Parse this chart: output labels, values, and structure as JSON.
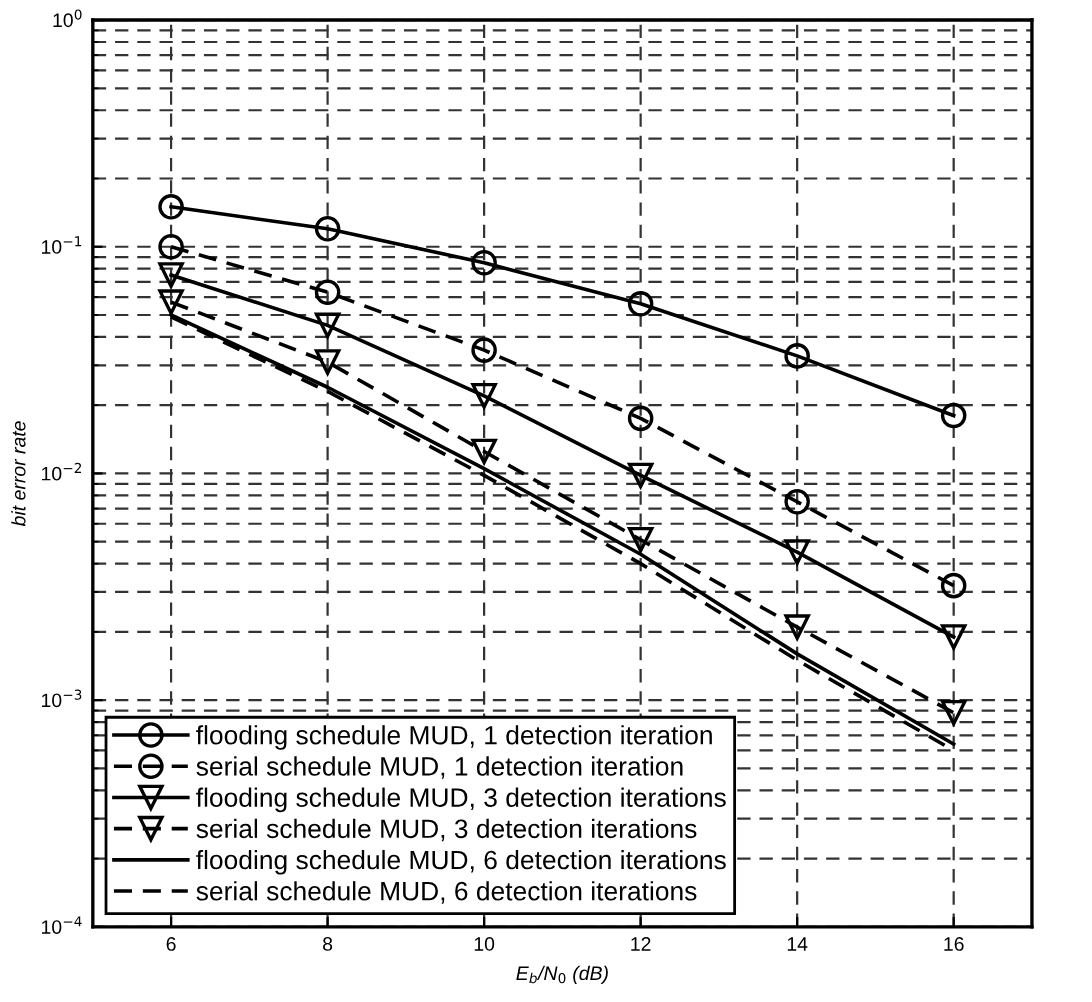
{
  "chart_data": {
    "type": "line",
    "xlabel": "E$_{b}$/N$_{0}$ (dB)",
    "ylabel": "bit error rate",
    "log": "y",
    "x": [
      6,
      8,
      10,
      12,
      14,
      16
    ],
    "series": [
      {
        "name": "flooding schedule MUD, 1 detection iteration",
        "color": "#000000",
        "marker": "circle",
        "line_style": "solid",
        "values": [
          0.15,
          0.12,
          0.085,
          0.056,
          0.033,
          0.018
        ]
      },
      {
        "name": "serial schedule MUD, 1 detection iteration",
        "color": "#000000",
        "marker": "circle",
        "line_style": "dashed",
        "values": [
          0.1,
          0.063,
          0.035,
          0.0175,
          0.0075,
          0.0032
        ]
      },
      {
        "name": "flooding schedule MUD, 3 detection iterations",
        "color": "#000000",
        "marker": "triangle",
        "line_style": "solid",
        "values": [
          0.075,
          0.045,
          0.022,
          0.0098,
          0.0045,
          0.0019
        ]
      },
      {
        "name": "serial schedule MUD, 3 detection iterations",
        "color": "#000000",
        "marker": "triangle",
        "line_style": "dashed",
        "values": [
          0.057,
          0.031,
          0.0125,
          0.0051,
          0.0021,
          0.00088
        ]
      },
      {
        "name": "flooding schedule MUD, 6 detection iterations",
        "color": "#000000",
        "marker": "none",
        "line_style": "solid",
        "values": [
          0.05,
          0.024,
          0.0105,
          0.0044,
          0.0016,
          0.00064
        ]
      },
      {
        "name": "serial schedule MUD, 6 detection iterations",
        "color": "#000000",
        "marker": "none",
        "line_style": "dashed",
        "values": [
          0.049,
          0.023,
          0.0098,
          0.004,
          0.0015,
          0.0006
        ]
      }
    ],
    "xlim": [
      5,
      17
    ],
    "xticks": [
      6,
      8,
      10,
      12,
      14,
      16
    ],
    "ylim": [
      0.0001,
      1
    ],
    "yticks": [
      {
        "value": 0.0001,
        "label": "10$^{−4}$"
      },
      {
        "value": 0.001,
        "label": "10$^{−3}$"
      },
      {
        "value": 0.01,
        "label": "10$^{−2}$"
      },
      {
        "value": 0.1,
        "label": "10$^{−1}$"
      },
      {
        "value": 1,
        "label": "10$^{0}$"
      }
    ],
    "grid": true,
    "legend": "bottom left"
  }
}
